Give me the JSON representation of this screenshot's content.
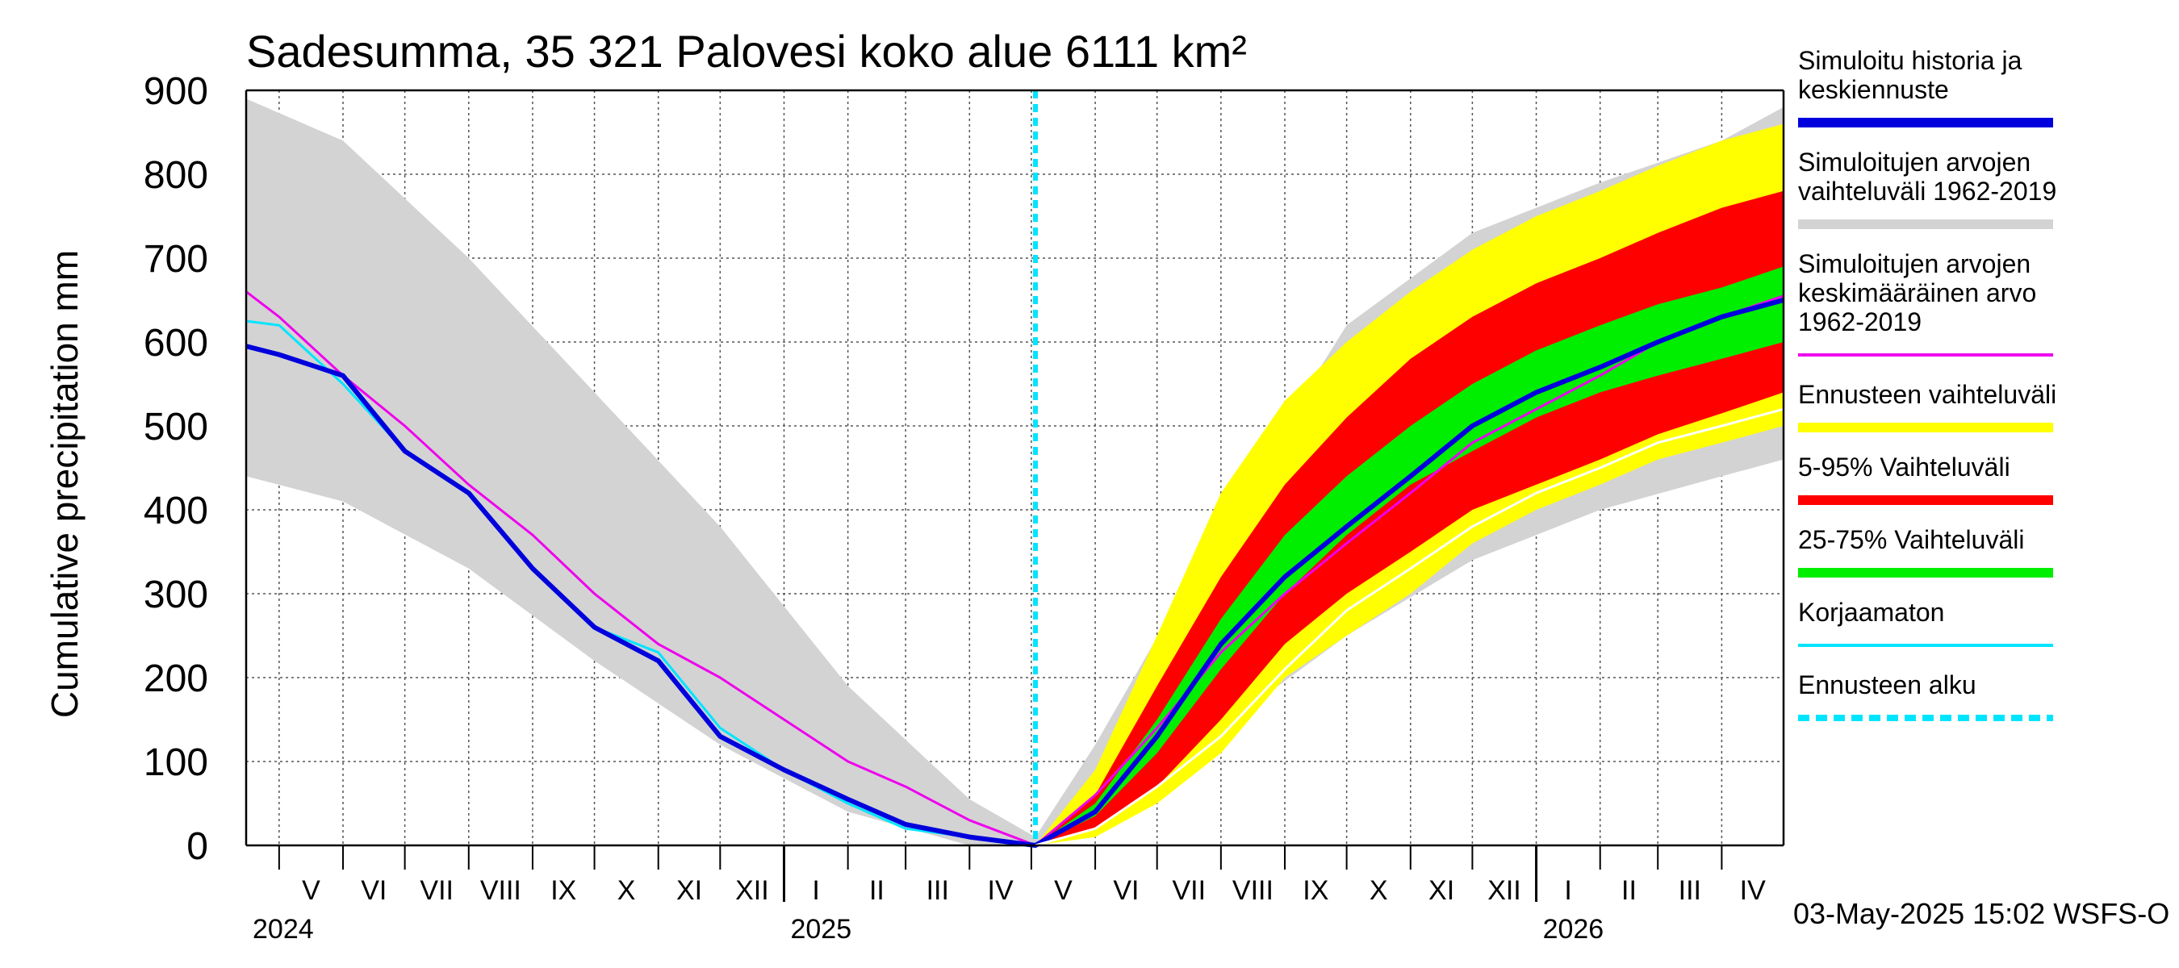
{
  "chart_data": {
    "type": "area",
    "title": "Sadesumma, 35 321 Palovesi koko alue 6111 km²",
    "ylabel": "Cumulative precipitation   mm",
    "xlabel": "",
    "ylim": [
      0,
      900
    ],
    "y_ticks": [
      0,
      100,
      200,
      300,
      400,
      500,
      600,
      700,
      800,
      900
    ],
    "x_start": "2024-04-15",
    "x_end": "2026-05-01",
    "forecast_start": "2025-05-03",
    "grid": true,
    "legend_position": "right",
    "months": [
      {
        "label": "V",
        "start": "2024-05-01"
      },
      {
        "label": "VI",
        "start": "2024-06-01"
      },
      {
        "label": "VII",
        "start": "2024-07-01"
      },
      {
        "label": "VIII",
        "start": "2024-08-01"
      },
      {
        "label": "IX",
        "start": "2024-09-01"
      },
      {
        "label": "X",
        "start": "2024-10-01"
      },
      {
        "label": "XI",
        "start": "2024-11-01"
      },
      {
        "label": "XII",
        "start": "2024-12-01"
      },
      {
        "label": "I",
        "start": "2025-01-01"
      },
      {
        "label": "II",
        "start": "2025-02-01"
      },
      {
        "label": "III",
        "start": "2025-03-01"
      },
      {
        "label": "IV",
        "start": "2025-04-01"
      },
      {
        "label": "V",
        "start": "2025-05-01"
      },
      {
        "label": "VI",
        "start": "2025-06-01"
      },
      {
        "label": "VII",
        "start": "2025-07-01"
      },
      {
        "label": "VIII",
        "start": "2025-08-01"
      },
      {
        "label": "IX",
        "start": "2025-09-01"
      },
      {
        "label": "X",
        "start": "2025-10-01"
      },
      {
        "label": "XI",
        "start": "2025-11-01"
      },
      {
        "label": "XII",
        "start": "2025-12-01"
      },
      {
        "label": "I",
        "start": "2026-01-01"
      },
      {
        "label": "II",
        "start": "2026-02-01"
      },
      {
        "label": "III",
        "start": "2026-03-01"
      },
      {
        "label": "IV",
        "start": "2026-04-01"
      }
    ],
    "years": [
      {
        "label": "2024",
        "date": "2024-04-15"
      },
      {
        "label": "2025",
        "date": "2025-01-01"
      },
      {
        "label": "2026",
        "date": "2026-01-01"
      }
    ],
    "bands": [
      {
        "name": "Simuloitujen arvojen vaihteluväli 1962-2019",
        "color": "#d3d3d3",
        "x": [
          "2024-04-15",
          "2024-06-01",
          "2024-08-01",
          "2024-10-01",
          "2024-12-01",
          "2025-02-01",
          "2025-04-01",
          "2025-05-03",
          "2025-06-01",
          "2025-08-01",
          "2025-10-01",
          "2025-12-01",
          "2026-02-01",
          "2026-04-01",
          "2026-05-01"
        ],
        "low": [
          440,
          410,
          330,
          220,
          120,
          40,
          0,
          0,
          30,
          140,
          250,
          340,
          400,
          440,
          460
        ],
        "high": [
          890,
          840,
          700,
          540,
          380,
          190,
          55,
          10,
          120,
          380,
          620,
          730,
          790,
          840,
          880
        ]
      },
      {
        "name": "Ennusteen vaihteluväli",
        "color": "#ffff00",
        "x": [
          "2025-05-03",
          "2025-06-01",
          "2025-07-01",
          "2025-08-01",
          "2025-09-01",
          "2025-10-01",
          "2025-11-01",
          "2025-12-01",
          "2026-01-01",
          "2026-02-01",
          "2026-03-01",
          "2026-04-01",
          "2026-05-01"
        ],
        "low": [
          0,
          10,
          50,
          110,
          200,
          250,
          300,
          360,
          400,
          430,
          460,
          480,
          500
        ],
        "high": [
          0,
          90,
          250,
          420,
          530,
          600,
          660,
          710,
          750,
          780,
          810,
          840,
          860
        ]
      },
      {
        "name": "5-95% Vaihteluväli",
        "color": "#ff0000",
        "x": [
          "2025-05-03",
          "2025-06-01",
          "2025-07-01",
          "2025-08-01",
          "2025-09-01",
          "2025-10-01",
          "2025-11-01",
          "2025-12-01",
          "2026-01-01",
          "2026-02-01",
          "2026-03-01",
          "2026-04-01",
          "2026-05-01"
        ],
        "low": [
          0,
          20,
          70,
          150,
          240,
          300,
          350,
          400,
          430,
          460,
          490,
          515,
          540
        ],
        "high": [
          0,
          60,
          190,
          320,
          430,
          510,
          580,
          630,
          670,
          700,
          730,
          760,
          780
        ]
      },
      {
        "name": "25-75% Vaihteluväli",
        "color": "#00ee00",
        "x": [
          "2025-05-03",
          "2025-06-01",
          "2025-07-01",
          "2025-08-01",
          "2025-09-01",
          "2025-10-01",
          "2025-11-01",
          "2025-12-01",
          "2026-01-01",
          "2026-02-01",
          "2026-03-01",
          "2026-04-01",
          "2026-05-01"
        ],
        "low": [
          0,
          35,
          110,
          210,
          300,
          370,
          430,
          470,
          510,
          540,
          560,
          580,
          600
        ],
        "high": [
          0,
          50,
          150,
          270,
          370,
          440,
          500,
          550,
          590,
          620,
          645,
          665,
          690
        ]
      }
    ],
    "series": [
      {
        "name": "Simuloitujen arvojen keskimääräinen arvo 1962-2019",
        "color": "#ee00ee",
        "width": 3,
        "x": [
          "2024-04-15",
          "2024-05-01",
          "2024-06-01",
          "2024-07-01",
          "2024-08-01",
          "2024-09-01",
          "2024-10-01",
          "2024-11-01",
          "2024-12-01",
          "2025-01-01",
          "2025-02-01",
          "2025-03-01",
          "2025-04-01",
          "2025-05-03",
          "2025-06-01",
          "2025-07-01",
          "2025-08-01",
          "2025-09-01",
          "2025-10-01",
          "2025-11-01",
          "2025-12-01",
          "2026-01-01",
          "2026-02-01",
          "2026-03-01",
          "2026-04-01",
          "2026-05-01"
        ],
        "y": [
          660,
          630,
          560,
          500,
          430,
          370,
          300,
          240,
          200,
          150,
          100,
          70,
          30,
          0,
          60,
          140,
          230,
          300,
          360,
          420,
          480,
          520,
          560,
          600,
          630,
          655
        ]
      },
      {
        "name": "Korjaamaton",
        "color": "#00e5ff",
        "width": 3,
        "x": [
          "2024-04-15",
          "2024-05-01",
          "2024-06-01",
          "2024-07-01",
          "2024-08-01",
          "2024-09-01",
          "2024-10-01",
          "2024-11-01",
          "2024-12-01",
          "2025-01-01",
          "2025-02-01",
          "2025-03-01",
          "2025-04-01",
          "2025-05-03"
        ],
        "y": [
          625,
          620,
          550,
          470,
          420,
          330,
          260,
          230,
          140,
          90,
          50,
          20,
          10,
          0
        ]
      },
      {
        "name": "Simuloitu historia ja keskiennuste",
        "color": "#0000dd",
        "width": 6,
        "x": [
          "2024-04-15",
          "2024-05-01",
          "2024-06-01",
          "2024-07-01",
          "2024-08-01",
          "2024-09-01",
          "2024-10-01",
          "2024-11-01",
          "2024-12-01",
          "2025-01-01",
          "2025-02-01",
          "2025-03-01",
          "2025-04-01",
          "2025-05-03",
          "2025-06-01",
          "2025-07-01",
          "2025-08-01",
          "2025-09-01",
          "2025-10-01",
          "2025-11-01",
          "2025-12-01",
          "2026-01-01",
          "2026-02-01",
          "2026-03-01",
          "2026-04-01",
          "2026-05-01"
        ],
        "y": [
          595,
          585,
          560,
          470,
          420,
          330,
          260,
          220,
          130,
          90,
          55,
          25,
          10,
          0,
          40,
          130,
          240,
          320,
          380,
          440,
          500,
          540,
          570,
          600,
          630,
          650
        ]
      },
      {
        "name": "Alin ennuste",
        "color": "#ffffff",
        "width": 3,
        "x": [
          "2025-05-03",
          "2025-06-01",
          "2025-07-01",
          "2025-08-01",
          "2025-09-01",
          "2025-10-01",
          "2025-11-01",
          "2025-12-01",
          "2026-01-01",
          "2026-02-01",
          "2026-03-01",
          "2026-04-01",
          "2026-05-01"
        ],
        "y": [
          0,
          20,
          70,
          130,
          210,
          280,
          330,
          380,
          420,
          450,
          480,
          500,
          520
        ]
      }
    ],
    "legend": [
      {
        "lines": [
          "Simuloitu historia ja",
          "keskiennuste"
        ],
        "color": "#0000dd",
        "style": "solid"
      },
      {
        "lines": [
          "Simuloitujen arvojen",
          "vaihteluväli 1962-2019"
        ],
        "color": "#d3d3d3",
        "style": "solid"
      },
      {
        "lines": [
          "Simuloitujen arvojen",
          "keskimääräinen arvo",
          "   1962-2019"
        ],
        "color": "#ee00ee",
        "style": "thin"
      },
      {
        "lines": [
          "Ennusteen vaihteluväli"
        ],
        "color": "#ffff00",
        "style": "solid"
      },
      {
        "lines": [
          "5-95% Vaihteluväli"
        ],
        "color": "#ff0000",
        "style": "solid"
      },
      {
        "lines": [
          "25-75% Vaihteluväli"
        ],
        "color": "#00ee00",
        "style": "solid"
      },
      {
        "lines": [
          "Korjaamaton"
        ],
        "color": "#00e5ff",
        "style": "thin"
      },
      {
        "lines": [
          "Ennusteen alku"
        ],
        "color": "#00e5ff",
        "style": "dashed"
      }
    ],
    "footer": "03-May-2025 15:02 WSFS-O"
  }
}
